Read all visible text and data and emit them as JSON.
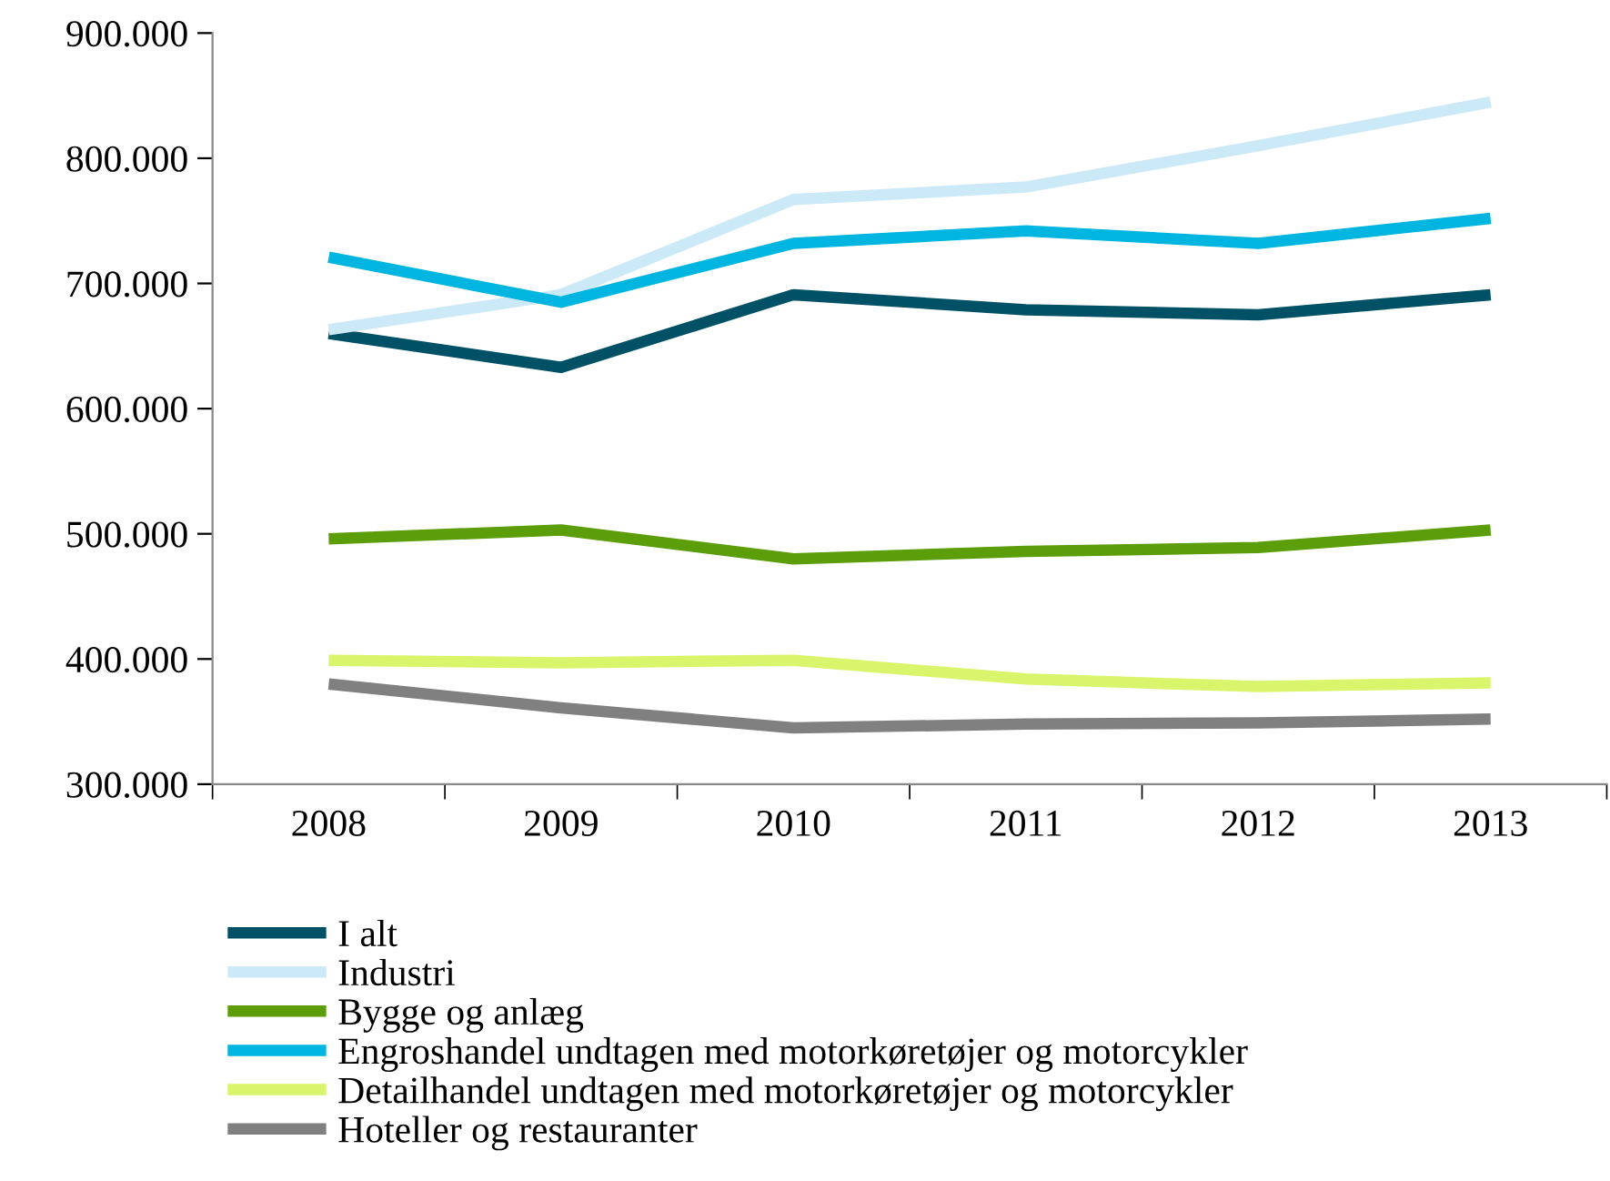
{
  "chart_data": {
    "type": "line",
    "categories": [
      "2008",
      "2009",
      "2010",
      "2011",
      "2012",
      "2013"
    ],
    "series": [
      {
        "name": "I alt",
        "color": "#005066",
        "values": [
          660000,
          633000,
          691000,
          679000,
          675000,
          691000
        ]
      },
      {
        "name": "Industri",
        "color": "#cce9f7",
        "values": [
          663000,
          691000,
          767000,
          777000,
          810000,
          845000
        ]
      },
      {
        "name": "Bygge og anlæg",
        "color": "#5c9e0a",
        "values": [
          496000,
          503000,
          480000,
          486000,
          489000,
          503000
        ]
      },
      {
        "name": "Engroshandel undtagen med motorkøretøjer og motorcykler",
        "color": "#00b5e0",
        "values": [
          721000,
          685000,
          732000,
          742000,
          732000,
          752000
        ]
      },
      {
        "name": "Detailhandel undtagen med motorkøretøjer og motorcykler",
        "color": "#d9f56b",
        "values": [
          399000,
          397000,
          399000,
          384000,
          378000,
          381000
        ]
      },
      {
        "name": "Hoteller og restauranter",
        "color": "#808080",
        "values": [
          380000,
          361000,
          345000,
          348000,
          349000,
          352000
        ]
      }
    ],
    "ylim": [
      300000,
      900000
    ],
    "yticks": [
      {
        "value": 300000,
        "label": "300.000"
      },
      {
        "value": 400000,
        "label": "400.000"
      },
      {
        "value": 500000,
        "label": "500.000"
      },
      {
        "value": 600000,
        "label": "600.000"
      },
      {
        "value": 700000,
        "label": "700.000"
      },
      {
        "value": 800000,
        "label": "800.000"
      },
      {
        "value": 900000,
        "label": "900.000"
      }
    ],
    "grid": false,
    "legend": "bottom",
    "marker": "none",
    "line_style": "solid"
  }
}
